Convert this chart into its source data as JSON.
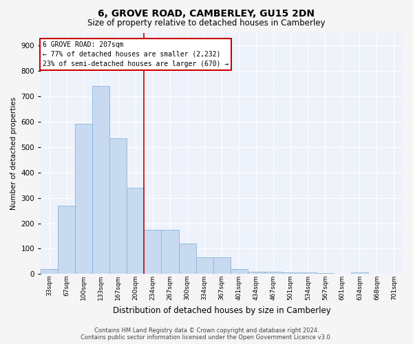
{
  "title": "6, GROVE ROAD, CAMBERLEY, GU15 2DN",
  "subtitle": "Size of property relative to detached houses in Camberley",
  "xlabel": "Distribution of detached houses by size in Camberley",
  "ylabel": "Number of detached properties",
  "bar_color": "#c8daf0",
  "bar_edge_color": "#8ab4da",
  "background_color": "#eef2fa",
  "grid_color": "#ffffff",
  "categories": [
    "33sqm",
    "67sqm",
    "100sqm",
    "133sqm",
    "167sqm",
    "200sqm",
    "234sqm",
    "267sqm",
    "300sqm",
    "334sqm",
    "367sqm",
    "401sqm",
    "434sqm",
    "467sqm",
    "501sqm",
    "534sqm",
    "567sqm",
    "601sqm",
    "634sqm",
    "668sqm",
    "701sqm"
  ],
  "values": [
    20,
    270,
    590,
    740,
    535,
    340,
    175,
    175,
    120,
    65,
    65,
    20,
    10,
    10,
    7,
    7,
    5,
    0,
    7,
    0,
    0
  ],
  "ylim": [
    0,
    950
  ],
  "yticks": [
    0,
    100,
    200,
    300,
    400,
    500,
    600,
    700,
    800,
    900
  ],
  "annotation_title": "6 GROVE ROAD: 207sqm",
  "annotation_line1": "← 77% of detached houses are smaller (2,232)",
  "annotation_line2": "23% of semi-detached houses are larger (670) →",
  "vline_x_index": 5.5,
  "annotation_box_facecolor": "#ffffff",
  "annotation_box_edgecolor": "#cc0000",
  "footer1": "Contains HM Land Registry data © Crown copyright and database right 2024.",
  "footer2": "Contains public sector information licensed under the Open Government Licence v3.0."
}
